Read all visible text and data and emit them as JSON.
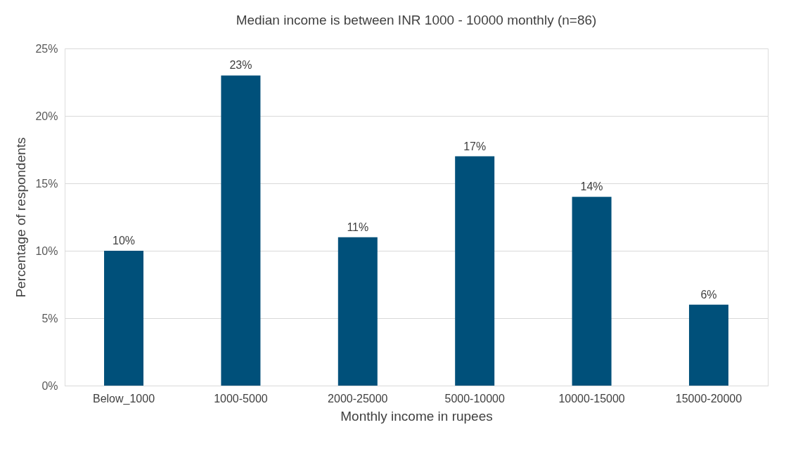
{
  "chart_data": {
    "type": "bar",
    "title": "Median income is between INR 1000 - 10000 monthly (n=86)",
    "xlabel": "Monthly income in rupees",
    "ylabel": "Percentage of respondents",
    "categories": [
      "Below_1000",
      "1000-5000",
      "2000-25000",
      "5000-10000",
      "10000-15000",
      "15000-20000"
    ],
    "values": [
      10,
      23,
      11,
      17,
      14,
      6
    ],
    "value_labels": [
      "10%",
      "23%",
      "11%",
      "17%",
      "14%",
      "6%"
    ],
    "color": "#00507a",
    "ylim": [
      0,
      25
    ],
    "yticks": [
      {
        "value": 0,
        "label": "0%"
      },
      {
        "value": 5,
        "label": "5%"
      },
      {
        "value": 10,
        "label": "10%"
      },
      {
        "value": 15,
        "label": "15%"
      },
      {
        "value": 20,
        "label": "20%"
      },
      {
        "value": 25,
        "label": "25%"
      }
    ],
    "grid": "y"
  }
}
